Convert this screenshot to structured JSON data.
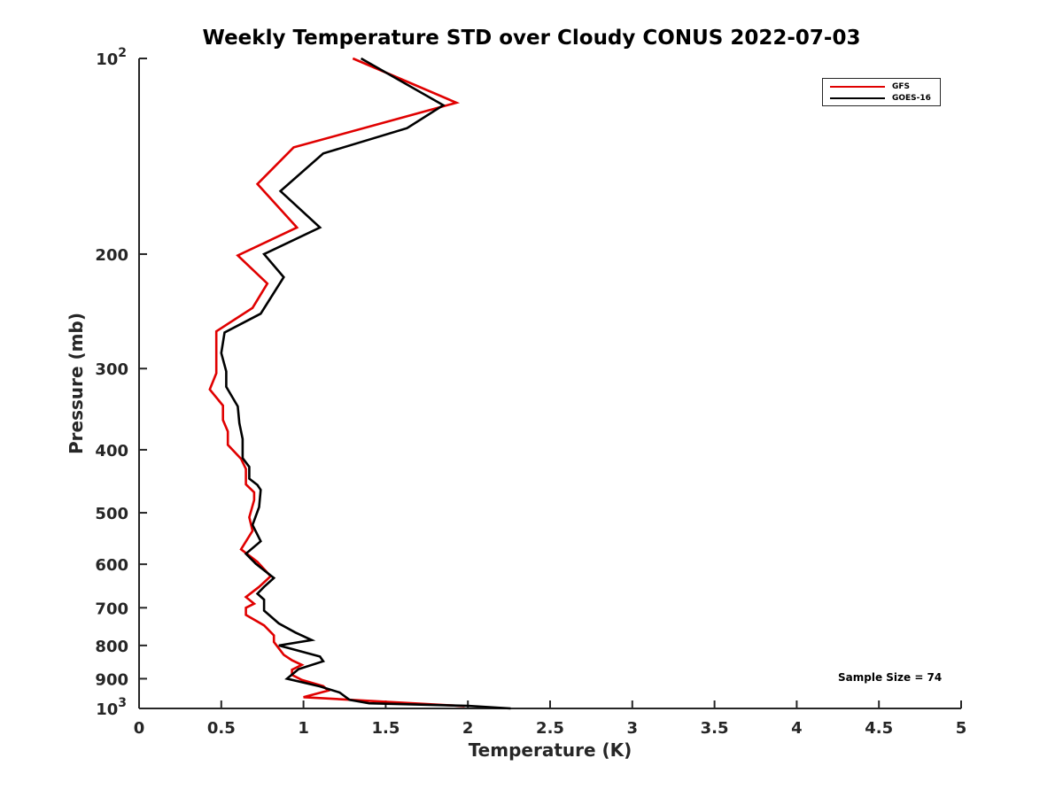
{
  "chart_data": {
    "type": "line",
    "title": "Weekly Temperature STD over Cloudy CONUS 2022-07-03",
    "xlabel": "Temperature (K)",
    "ylabel": "Pressure (mb)",
    "xlim": [
      0,
      5
    ],
    "ylim": [
      100,
      1000
    ],
    "y_scale": "log",
    "y_reversed": true,
    "grid": false,
    "legend_position": "top-right",
    "x_ticks": [
      {
        "value": 0,
        "label": "0"
      },
      {
        "value": 0.5,
        "label": "0.5"
      },
      {
        "value": 1,
        "label": "1"
      },
      {
        "value": 1.5,
        "label": "1.5"
      },
      {
        "value": 2,
        "label": "2"
      },
      {
        "value": 2.5,
        "label": "2.5"
      },
      {
        "value": 3,
        "label": "3"
      },
      {
        "value": 3.5,
        "label": "3.5"
      },
      {
        "value": 4,
        "label": "4"
      },
      {
        "value": 4.5,
        "label": "4.5"
      },
      {
        "value": 5,
        "label": "5"
      }
    ],
    "y_ticks": [
      {
        "value": 100,
        "label": "10",
        "sup": "2"
      },
      {
        "value": 200,
        "label": "200"
      },
      {
        "value": 300,
        "label": "300"
      },
      {
        "value": 400,
        "label": "400"
      },
      {
        "value": 500,
        "label": "500"
      },
      {
        "value": 600,
        "label": "600"
      },
      {
        "value": 700,
        "label": "700"
      },
      {
        "value": 800,
        "label": "800"
      },
      {
        "value": 900,
        "label": "900"
      },
      {
        "value": 1000,
        "label": "10",
        "sup": "3"
      }
    ],
    "series": [
      {
        "name": "GFS",
        "color": "#e00000",
        "points": [
          [
            1.3,
            100
          ],
          [
            1.93,
            117
          ],
          [
            0.94,
            137
          ],
          [
            0.72,
            156
          ],
          [
            0.96,
            182
          ],
          [
            0.6,
            201
          ],
          [
            0.78,
            222
          ],
          [
            0.69,
            242
          ],
          [
            0.47,
            263
          ],
          [
            0.47,
            290
          ],
          [
            0.47,
            305
          ],
          [
            0.43,
            323
          ],
          [
            0.51,
            342
          ],
          [
            0.51,
            360
          ],
          [
            0.54,
            375
          ],
          [
            0.54,
            393
          ],
          [
            0.62,
            413
          ],
          [
            0.65,
            428
          ],
          [
            0.65,
            452
          ],
          [
            0.7,
            465
          ],
          [
            0.7,
            478
          ],
          [
            0.67,
            508
          ],
          [
            0.69,
            533
          ],
          [
            0.62,
            569
          ],
          [
            0.72,
            595
          ],
          [
            0.8,
            626
          ],
          [
            0.73,
            650
          ],
          [
            0.65,
            674
          ],
          [
            0.7,
            690
          ],
          [
            0.65,
            700
          ],
          [
            0.65,
            718
          ],
          [
            0.76,
            745
          ],
          [
            0.82,
            772
          ],
          [
            0.82,
            790
          ],
          [
            0.88,
            827
          ],
          [
            0.93,
            843
          ],
          [
            0.99,
            857
          ],
          [
            0.93,
            872
          ],
          [
            0.93,
            888
          ],
          [
            0.99,
            904
          ],
          [
            1.12,
            924
          ],
          [
            1.15,
            939
          ],
          [
            1.0,
            961
          ],
          [
            1.98,
            992
          ]
        ]
      },
      {
        "name": "GOES-16",
        "color": "#000000",
        "points": [
          [
            1.35,
            100
          ],
          [
            1.85,
            118
          ],
          [
            1.63,
            128
          ],
          [
            1.12,
            140
          ],
          [
            0.86,
            160
          ],
          [
            1.1,
            182
          ],
          [
            0.76,
            200
          ],
          [
            0.88,
            217
          ],
          [
            0.74,
            247
          ],
          [
            0.52,
            264
          ],
          [
            0.5,
            284
          ],
          [
            0.53,
            303
          ],
          [
            0.53,
            320
          ],
          [
            0.6,
            343
          ],
          [
            0.61,
            364
          ],
          [
            0.63,
            385
          ],
          [
            0.63,
            412
          ],
          [
            0.67,
            425
          ],
          [
            0.67,
            443
          ],
          [
            0.72,
            453
          ],
          [
            0.74,
            461
          ],
          [
            0.73,
            490
          ],
          [
            0.69,
            522
          ],
          [
            0.74,
            553
          ],
          [
            0.65,
            578
          ],
          [
            0.71,
            599
          ],
          [
            0.82,
            630
          ],
          [
            0.76,
            650
          ],
          [
            0.72,
            666
          ],
          [
            0.76,
            680
          ],
          [
            0.76,
            707
          ],
          [
            0.85,
            740
          ],
          [
            0.95,
            764
          ],
          [
            1.05,
            785
          ],
          [
            0.85,
            800
          ],
          [
            1.1,
            832
          ],
          [
            1.12,
            846
          ],
          [
            0.97,
            870
          ],
          [
            0.9,
            900
          ],
          [
            1.1,
            925
          ],
          [
            1.22,
            945
          ],
          [
            1.28,
            970
          ],
          [
            1.4,
            982
          ],
          [
            2.0,
            991
          ],
          [
            2.26,
            1000
          ]
        ]
      }
    ],
    "annotations": [
      {
        "text": "Sample Size = 74",
        "position": "bottom-right"
      }
    ]
  },
  "legend": {
    "items": [
      {
        "label": "GFS",
        "color": "#e00000"
      },
      {
        "label": "GOES-16",
        "color": "#000000"
      }
    ]
  }
}
